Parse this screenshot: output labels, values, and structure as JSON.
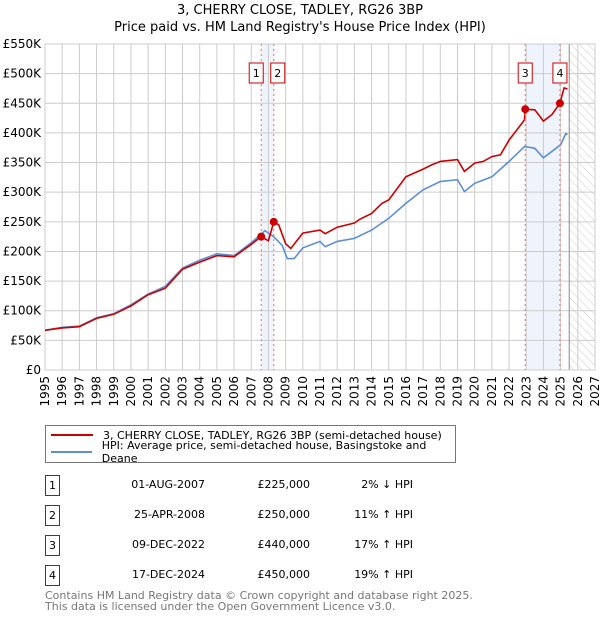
{
  "chart_data": {
    "type": "line",
    "title": "3, CHERRY CLOSE, TADLEY, RG26 3BP",
    "subtitle": "Price paid vs. HM Land Registry's House Price Index (HPI)",
    "xlabel": "",
    "ylabel": "",
    "xlim": [
      1995,
      2027
    ],
    "ylim": [
      0,
      550000
    ],
    "x_ticks": [
      "1995",
      "1996",
      "1997",
      "1998",
      "1999",
      "2000",
      "2001",
      "2002",
      "2003",
      "2004",
      "2005",
      "2006",
      "2007",
      "2008",
      "2009",
      "2010",
      "2011",
      "2012",
      "2013",
      "2014",
      "2015",
      "2016",
      "2017",
      "2018",
      "2019",
      "2020",
      "2021",
      "2022",
      "2023",
      "2024",
      "2025",
      "2026",
      "2027"
    ],
    "y_ticks": [
      {
        "v": 0,
        "label": "£0"
      },
      {
        "v": 50000,
        "label": "£50K"
      },
      {
        "v": 100000,
        "label": "£100K"
      },
      {
        "v": 150000,
        "label": "£150K"
      },
      {
        "v": 200000,
        "label": "£200K"
      },
      {
        "v": 250000,
        "label": "£250K"
      },
      {
        "v": 300000,
        "label": "£300K"
      },
      {
        "v": 350000,
        "label": "£350K"
      },
      {
        "v": 400000,
        "label": "£400K"
      },
      {
        "v": 450000,
        "label": "£450K"
      },
      {
        "v": 500000,
        "label": "£500K"
      },
      {
        "v": 550000,
        "label": "£550K"
      }
    ],
    "grid": true,
    "forecast_from": 2025.5,
    "series": [
      {
        "name": "3, CHERRY CLOSE, TADLEY, RG26 3BP (semi-detached house)",
        "color": "#cc0000",
        "x": [
          1995,
          1996,
          1997,
          1998,
          1999,
          2000,
          2001,
          2002,
          2003,
          2004,
          2005,
          2006,
          2007,
          2007.58,
          2008.0,
          2008.31,
          2008.6,
          2009.0,
          2009.3,
          2010,
          2011,
          2011.3,
          2012,
          2013,
          2013.3,
          2014,
          2014.6,
          2015,
          2016,
          2017,
          2017.5,
          2018,
          2019,
          2019.4,
          2020,
          2020.5,
          2021,
          2021.5,
          2022,
          2022.9,
          2022.94,
          2023.5,
          2024,
          2024.5,
          2024.96,
          2025.2,
          2025.4
        ],
        "y": [
          67000,
          71000,
          73000,
          87000,
          94000,
          108000,
          127000,
          138000,
          170000,
          182000,
          193000,
          191000,
          212000,
          225000,
          218000,
          250000,
          245000,
          213000,
          205000,
          231000,
          236000,
          230000,
          241000,
          248000,
          254000,
          264000,
          281000,
          287000,
          326000,
          339000,
          346000,
          352000,
          355000,
          335000,
          349000,
          352000,
          360000,
          363000,
          388000,
          422000,
          440000,
          439000,
          420000,
          431000,
          450000,
          476000,
          474000
        ]
      },
      {
        "name": "HPI: Average price, semi-detached house, Basingstoke and Deane",
        "color": "#5b8fd4",
        "x": [
          1995,
          1996,
          1997,
          1998,
          1999,
          2000,
          2001,
          2002,
          2003,
          2004,
          2005,
          2006,
          2007,
          2007.8,
          2008.3,
          2008.8,
          2009.1,
          2009.5,
          2010,
          2011,
          2011.3,
          2012,
          2013,
          2014,
          2015,
          2016,
          2017,
          2018,
          2019,
          2019.4,
          2020,
          2021,
          2022,
          2022.9,
          2023.5,
          2024,
          2024.5,
          2025,
          2025.3,
          2025.4
        ],
        "y": [
          67000,
          72000,
          74000,
          88000,
          95000,
          110000,
          128000,
          141000,
          172000,
          185000,
          196000,
          193000,
          215000,
          235000,
          225000,
          210000,
          188000,
          188000,
          206000,
          217000,
          208000,
          217000,
          222000,
          236000,
          256000,
          281000,
          304000,
          318000,
          321000,
          301000,
          315000,
          326000,
          352000,
          377000,
          374000,
          358000,
          369000,
          380000,
          399000,
          397000
        ]
      }
    ],
    "sales": [
      {
        "n": "1",
        "x": 2007.58,
        "date": "01-AUG-2007",
        "price": "£225,000",
        "value": 225000,
        "hpi": "2% ↓ HPI"
      },
      {
        "n": "2",
        "x": 2008.31,
        "date": "25-APR-2008",
        "price": "£250,000",
        "value": 250000,
        "hpi": "11% ↑ HPI"
      },
      {
        "n": "3",
        "x": 2022.94,
        "date": "09-DEC-2022",
        "price": "£440,000",
        "value": 440000,
        "hpi": "17% ↑ HPI"
      },
      {
        "n": "4",
        "x": 2024.96,
        "date": "17-DEC-2024",
        "price": "£450,000",
        "value": 450000,
        "hpi": "19% ↑ HPI"
      }
    ],
    "shaded_ranges": [
      [
        2007.58,
        2008.31
      ],
      [
        2022.94,
        2024.96
      ]
    ]
  },
  "footer": {
    "line1": "Contains HM Land Registry data © Crown copyright and database right 2025.",
    "line2": "This data is licensed under the Open Government Licence v3.0."
  }
}
